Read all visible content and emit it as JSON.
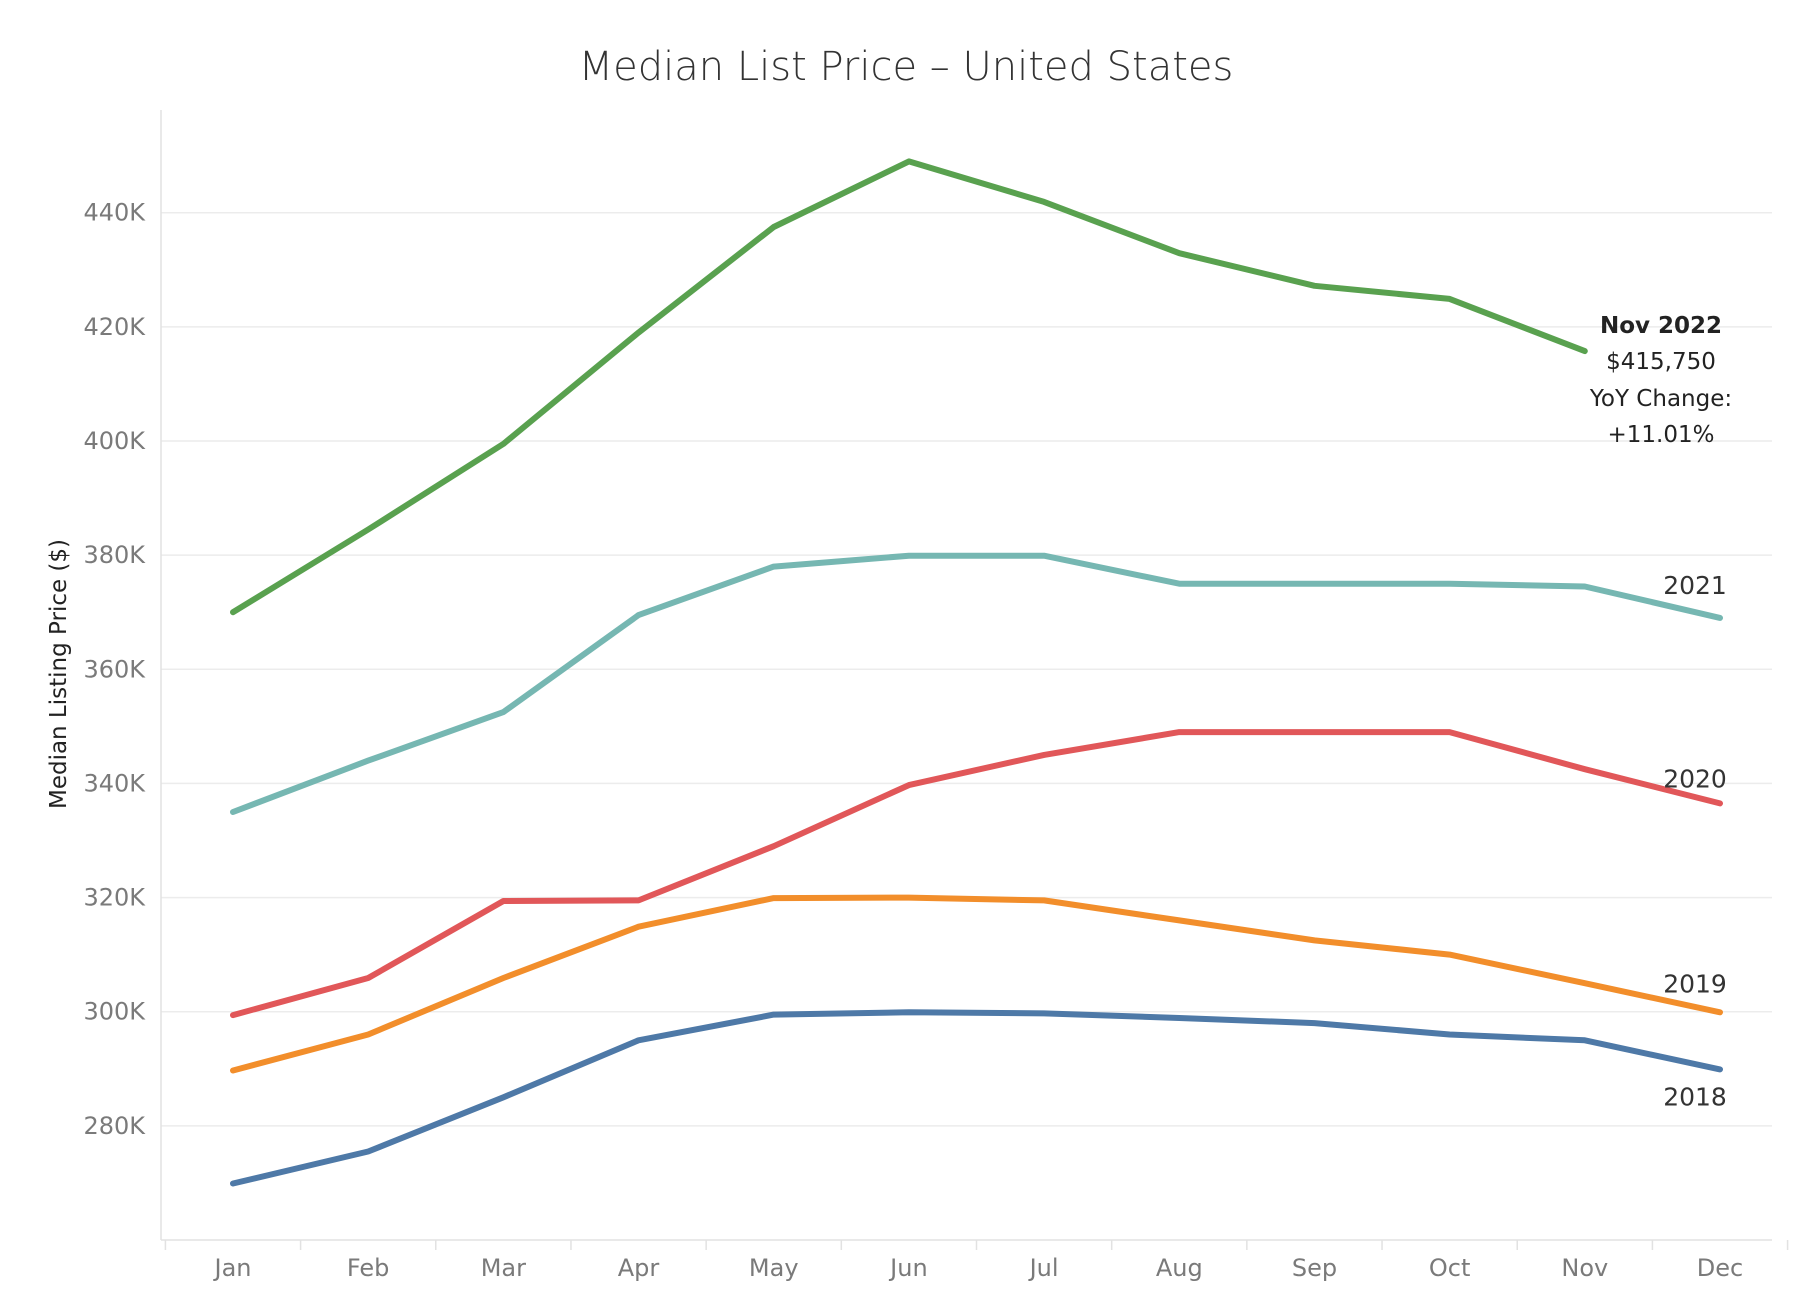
{
  "chart_data": {
    "type": "line",
    "title": "Median List Price – United States",
    "ylabel": "Median Listing Price ($)",
    "xlabel": "",
    "categories": [
      "Jan",
      "Feb",
      "Mar",
      "Apr",
      "May",
      "Jun",
      "Jul",
      "Aug",
      "Sep",
      "Oct",
      "Nov",
      "Dec"
    ],
    "ylim": [
      260000,
      458000
    ],
    "yticks": [
      280000,
      300000,
      320000,
      340000,
      360000,
      380000,
      400000,
      420000,
      440000
    ],
    "ytick_labels": [
      "280K",
      "300K",
      "320K",
      "340K",
      "360K",
      "380K",
      "400K",
      "420K",
      "440K"
    ],
    "grid": true,
    "legend": "none",
    "series": [
      {
        "name": "2018",
        "color": "#4e79a7",
        "values": [
          269900,
          275500,
          285000,
          295000,
          299500,
          299900,
          299700,
          298900,
          298000,
          296000,
          295000,
          289900
        ]
      },
      {
        "name": "2019",
        "color": "#f28e2b",
        "values": [
          289700,
          296000,
          305900,
          314900,
          319900,
          320000,
          319500,
          316000,
          312500,
          310000,
          305000,
          299900
        ]
      },
      {
        "name": "2020",
        "color": "#e15759",
        "values": [
          299400,
          305900,
          319400,
          319500,
          329000,
          339700,
          345000,
          349000,
          349000,
          349000,
          342500,
          336500
        ]
      },
      {
        "name": "2021",
        "color": "#76b7b2",
        "values": [
          335000,
          344000,
          352500,
          369500,
          378000,
          379900,
          379900,
          375000,
          375000,
          375000,
          374500,
          369000
        ]
      },
      {
        "name": "",
        "color": "#59a14f",
        "values": [
          370000,
          384500,
          399500,
          419000,
          437500,
          449000,
          441900,
          432900,
          427200,
          424900,
          415750,
          null
        ]
      }
    ],
    "annotation": {
      "line1": "Nov 2022",
      "line2": "$415,750",
      "line3": "YoY Change:",
      "line4": "+11.01%"
    }
  }
}
